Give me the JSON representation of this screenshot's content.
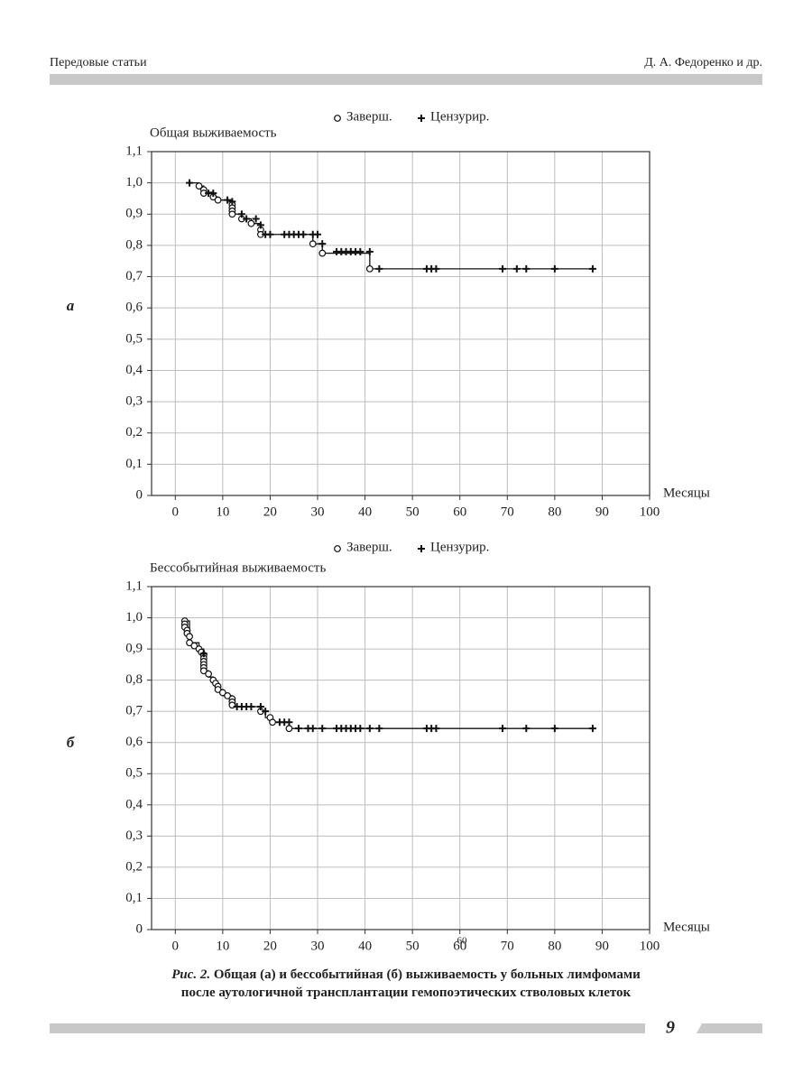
{
  "header": {
    "section": "Передовые статьи",
    "authors": "Д. А. Федоренко и др."
  },
  "chart_data": [
    {
      "type": "step",
      "panel": "а",
      "y_label": "Общая выживаемость",
      "x_label": "Месяцы",
      "xlim": [
        -5,
        100
      ],
      "xticks": [
        0,
        10,
        20,
        30,
        40,
        50,
        60,
        70,
        80,
        90,
        100
      ],
      "ylim": [
        0,
        1.1
      ],
      "yticks": [
        0,
        {
          "value": 0.1,
          "label": "0,1"
        },
        {
          "value": 0.2,
          "label": "0,2"
        },
        {
          "value": 0.3,
          "label": "0,3"
        },
        {
          "value": 0.4,
          "label": "0,4"
        },
        {
          "value": 0.5,
          "label": "0,5"
        },
        {
          "value": 0.6,
          "label": "0,6"
        },
        {
          "value": 0.7,
          "label": "0,7"
        },
        {
          "value": 0.8,
          "label": "0,8"
        },
        {
          "value": 0.9,
          "label": "0,9"
        },
        {
          "value": 1.0,
          "label": "1,0"
        },
        {
          "value": 1.1,
          "label": "1,1"
        }
      ],
      "grid": true,
      "line": {
        "color": "#111111",
        "x": [
          3,
          5,
          6,
          8,
          9,
          12,
          14,
          16,
          18,
          29,
          31,
          41,
          88
        ],
        "y": [
          1.0,
          0.99,
          0.97,
          0.955,
          0.945,
          0.9,
          0.885,
          0.87,
          0.835,
          0.805,
          0.775,
          0.725,
          0.725
        ]
      },
      "series": [
        {
          "name": "Заверш.",
          "marker": "circle",
          "color": "#111111",
          "x": [
            5,
            6,
            6,
            8,
            9,
            12,
            12,
            12,
            12,
            14,
            16,
            18,
            18,
            29,
            31,
            41
          ],
          "y": [
            0.99,
            0.978,
            0.967,
            0.955,
            0.945,
            0.93,
            0.92,
            0.91,
            0.9,
            0.885,
            0.87,
            0.85,
            0.835,
            0.805,
            0.775,
            0.725
          ]
        },
        {
          "name": "Цензурир.",
          "marker": "plus",
          "color": "#111111",
          "x": [
            3,
            7,
            8,
            11,
            12,
            14,
            15,
            17,
            18,
            19,
            20,
            23,
            24,
            25,
            26,
            27,
            29,
            30,
            31,
            34,
            35,
            36,
            37,
            38,
            39,
            41,
            43,
            53,
            54,
            55,
            69,
            72,
            74,
            80,
            88
          ],
          "y": [
            1.0,
            0.967,
            0.967,
            0.945,
            0.94,
            0.9,
            0.885,
            0.885,
            0.865,
            0.835,
            0.835,
            0.835,
            0.835,
            0.835,
            0.835,
            0.835,
            0.835,
            0.835,
            0.805,
            0.78,
            0.78,
            0.78,
            0.78,
            0.78,
            0.78,
            0.78,
            0.725,
            0.725,
            0.725,
            0.725,
            0.725,
            0.725,
            0.725,
            0.725,
            0.725
          ]
        }
      ]
    },
    {
      "type": "step",
      "panel": "б",
      "y_label": "Бессобытийная выживаемость",
      "x_label": "Месяцы",
      "annotation": "60",
      "xlim": [
        -5,
        100
      ],
      "xticks": [
        0,
        10,
        20,
        30,
        40,
        50,
        60,
        70,
        80,
        90,
        100
      ],
      "ylim": [
        0,
        1.1
      ],
      "yticks": [
        0,
        {
          "value": 0.1,
          "label": "0,1"
        },
        {
          "value": 0.2,
          "label": "0,2"
        },
        {
          "value": 0.3,
          "label": "0,3"
        },
        {
          "value": 0.4,
          "label": "0,4"
        },
        {
          "value": 0.5,
          "label": "0,5"
        },
        {
          "value": 0.6,
          "label": "0,6"
        },
        {
          "value": 0.7,
          "label": "0,7"
        },
        {
          "value": 0.8,
          "label": "0,8"
        },
        {
          "value": 0.9,
          "label": "0,9"
        },
        {
          "value": 1.0,
          "label": "1,0"
        },
        {
          "value": 1.1,
          "label": "1,1"
        }
      ],
      "grid": true,
      "line": {
        "color": "#111111",
        "x": [
          2,
          3,
          5,
          6,
          7,
          8,
          9,
          10,
          12,
          18,
          19,
          20,
          24,
          88
        ],
        "y": [
          0.99,
          0.92,
          0.9,
          0.83,
          0.81,
          0.79,
          0.77,
          0.75,
          0.715,
          0.7,
          0.68,
          0.665,
          0.645,
          0.645
        ]
      },
      "series": [
        {
          "name": "Заверш.",
          "marker": "circle",
          "color": "#111111",
          "x": [
            2,
            2,
            2,
            2.5,
            2.5,
            3,
            3,
            4,
            5,
            5.5,
            6,
            6,
            6,
            6,
            6,
            6,
            7,
            8,
            8.5,
            9,
            9,
            10,
            11,
            12,
            12,
            12,
            18,
            20,
            20.5,
            24
          ],
          "y": [
            0.99,
            0.98,
            0.97,
            0.96,
            0.95,
            0.94,
            0.92,
            0.91,
            0.9,
            0.89,
            0.88,
            0.87,
            0.86,
            0.85,
            0.84,
            0.83,
            0.82,
            0.8,
            0.79,
            0.78,
            0.77,
            0.76,
            0.75,
            0.74,
            0.73,
            0.72,
            0.7,
            0.68,
            0.665,
            0.645
          ]
        },
        {
          "name": "Цензурир.",
          "marker": "plus",
          "color": "#111111",
          "x": [
            6,
            13,
            14,
            15,
            16,
            18,
            19,
            22,
            23,
            24,
            26,
            28,
            29,
            31,
            34,
            35,
            36,
            37,
            38,
            39,
            41,
            43,
            53,
            54,
            55,
            69,
            74,
            80,
            88
          ],
          "y": [
            0.885,
            0.715,
            0.715,
            0.715,
            0.715,
            0.715,
            0.7,
            0.665,
            0.665,
            0.665,
            0.645,
            0.645,
            0.645,
            0.645,
            0.645,
            0.645,
            0.645,
            0.645,
            0.645,
            0.645,
            0.645,
            0.645,
            0.645,
            0.645,
            0.645,
            0.645,
            0.645,
            0.645,
            0.645
          ]
        }
      ]
    }
  ],
  "caption": {
    "label": "Рис. 2.",
    "lines": [
      "Общая (а) и бессобытийная (б) выживаемость у больных лимфомами",
      "после аутологичной трансплантации гемопоэтических стволовых клеток"
    ]
  },
  "footer": {
    "page": "9"
  }
}
